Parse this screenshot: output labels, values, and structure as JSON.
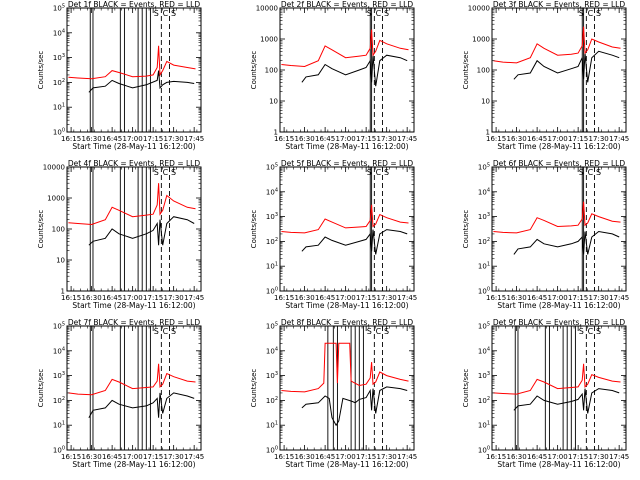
{
  "common": {
    "ylabel": "Counts/sec",
    "xlabel": "Start Time (28-May-11 16:12:00)",
    "x_tick_labels": [
      "16:15",
      "16:30",
      "16:45",
      "17:00",
      "17:15",
      "17:30",
      "17:45"
    ],
    "colors": {
      "events": "#000000",
      "lld": "#ff0000"
    },
    "legend_words": {
      "det": "Det",
      "black": "BLACK",
      "equals": "=",
      "events": "Events,",
      "red": "RED",
      "lld": "LLD"
    }
  },
  "chart_data": [
    {
      "type": "line",
      "detector": "1f",
      "title": "Det 1f BLACK = Events, RED = LLD",
      "xlim": [
        "16:12",
        "17:50"
      ],
      "ylim": [
        1,
        100000
      ],
      "yscale": "log",
      "y_tick_labels": [
        "10^0",
        "10^1",
        "10^2",
        "10^3",
        "10^4",
        "10^5"
      ],
      "solid_markers": [
        "16:29",
        "16:31",
        "16:51",
        "16:54",
        "17:04",
        "17:07",
        "17:10",
        "17:13"
      ],
      "dashed_markers": [
        "17:21",
        "17:27"
      ],
      "markers_top": [
        "S",
        "C",
        "S"
      ],
      "series": [
        {
          "name": "Events",
          "x": [
            "16:28",
            "16:31",
            "16:40",
            "16:45",
            "16:50",
            "17:00",
            "17:10",
            "17:18",
            "17:19",
            "17:20",
            "17:22",
            "17:25",
            "17:30",
            "17:40",
            "17:45"
          ],
          "values": [
            40,
            60,
            70,
            120,
            90,
            60,
            80,
            120,
            300,
            60,
            80,
            100,
            110,
            100,
            90
          ]
        },
        {
          "name": "LLD",
          "x": [
            "16:13",
            "16:20",
            "16:30",
            "16:40",
            "16:45",
            "16:50",
            "17:00",
            "17:10",
            "17:15",
            "17:18",
            "17:19",
            "17:20",
            "17:22",
            "17:25",
            "17:30",
            "17:40",
            "17:46"
          ],
          "values": [
            160,
            150,
            140,
            170,
            300,
            250,
            170,
            180,
            200,
            400,
            3000,
            200,
            300,
            700,
            500,
            400,
            350
          ]
        }
      ]
    },
    {
      "type": "line",
      "detector": "2f",
      "title": "Det 2f BLACK = Events, RED = LLD",
      "xlim": [
        "16:12",
        "17:50"
      ],
      "ylim": [
        1,
        10000
      ],
      "yscale": "log",
      "y_tick_labels": [
        "1",
        "10",
        "100",
        "1000",
        "10000"
      ],
      "solid_markers": [
        "17:18",
        "17:19"
      ],
      "dashed_markers": [
        "17:21",
        "17:27"
      ],
      "markers_top": [
        "S",
        "C",
        "S"
      ],
      "series": [
        {
          "name": "Events",
          "x": [
            "16:28",
            "16:31",
            "16:40",
            "16:45",
            "16:50",
            "17:00",
            "17:10",
            "17:15",
            "17:18",
            "17:19",
            "17:20",
            "17:22",
            "17:25",
            "17:30",
            "17:40",
            "17:45"
          ],
          "values": [
            40,
            60,
            70,
            150,
            110,
            70,
            100,
            120,
            200,
            40,
            300,
            30,
            200,
            300,
            250,
            200
          ]
        },
        {
          "name": "LLD",
          "x": [
            "16:13",
            "16:20",
            "16:30",
            "16:40",
            "16:45",
            "16:50",
            "17:00",
            "17:10",
            "17:15",
            "17:18",
            "17:19",
            "17:20",
            "17:22",
            "17:25",
            "17:30",
            "17:40",
            "17:46"
          ],
          "values": [
            150,
            140,
            130,
            200,
            600,
            450,
            250,
            280,
            300,
            500,
            2000,
            300,
            400,
            900,
            700,
            500,
            450
          ]
        }
      ]
    },
    {
      "type": "line",
      "detector": "3f",
      "title": "Det 3f BLACK = Events, RED = LLD",
      "xlim": [
        "16:12",
        "17:50"
      ],
      "ylim": [
        1,
        10000
      ],
      "yscale": "log",
      "y_tick_labels": [
        "1",
        "10",
        "100",
        "1000",
        "10000"
      ],
      "solid_markers": [
        "17:18",
        "17:19"
      ],
      "dashed_markers": [
        "17:21",
        "17:27"
      ],
      "markers_top": [
        "S",
        "C",
        "S"
      ],
      "series": [
        {
          "name": "Events",
          "x": [
            "16:28",
            "16:31",
            "16:40",
            "16:45",
            "16:50",
            "17:00",
            "17:10",
            "17:15",
            "17:18",
            "17:19",
            "17:20",
            "17:22",
            "17:25",
            "17:30",
            "17:40",
            "17:45"
          ],
          "values": [
            50,
            70,
            80,
            200,
            130,
            80,
            110,
            130,
            250,
            50,
            350,
            40,
            250,
            400,
            300,
            250
          ]
        },
        {
          "name": "LLD",
          "x": [
            "16:13",
            "16:20",
            "16:30",
            "16:40",
            "16:45",
            "16:50",
            "17:00",
            "17:10",
            "17:15",
            "17:18",
            "17:19",
            "17:20",
            "17:22",
            "17:25",
            "17:30",
            "17:40",
            "17:46"
          ],
          "values": [
            200,
            180,
            170,
            250,
            700,
            500,
            300,
            320,
            350,
            600,
            2500,
            350,
            450,
            1000,
            800,
            550,
            500
          ]
        }
      ]
    },
    {
      "type": "line",
      "detector": "4f",
      "title": "Det 4f BLACK = Events, RED = LLD",
      "xlim": [
        "16:12",
        "17:50"
      ],
      "ylim": [
        1,
        10000
      ],
      "yscale": "log",
      "y_tick_labels": [
        "1",
        "10",
        "100",
        "1000",
        "10000"
      ],
      "solid_markers": [
        "16:29",
        "16:31",
        "16:51",
        "16:54",
        "17:04",
        "17:07",
        "17:10",
        "17:13"
      ],
      "dashed_markers": [
        "17:21",
        "17:27"
      ],
      "markers_top": [
        "S",
        "C",
        "S"
      ],
      "series": [
        {
          "name": "Events",
          "x": [
            "16:28",
            "16:31",
            "16:40",
            "16:45",
            "16:50",
            "17:00",
            "17:10",
            "17:15",
            "17:18",
            "17:19",
            "17:20",
            "17:22",
            "17:25",
            "17:30",
            "17:40",
            "17:45"
          ],
          "values": [
            30,
            40,
            50,
            100,
            70,
            50,
            70,
            90,
            150,
            30,
            200,
            30,
            150,
            250,
            200,
            150
          ]
        },
        {
          "name": "LLD",
          "x": [
            "16:13",
            "16:20",
            "16:30",
            "16:40",
            "16:45",
            "16:50",
            "17:00",
            "17:10",
            "17:15",
            "17:18",
            "17:19",
            "17:20",
            "17:22",
            "17:25",
            "17:30",
            "17:40",
            "17:46"
          ],
          "values": [
            160,
            150,
            140,
            200,
            500,
            400,
            250,
            280,
            300,
            600,
            3000,
            300,
            400,
            1200,
            800,
            500,
            450
          ]
        }
      ]
    },
    {
      "type": "line",
      "detector": "5f",
      "title": "Det 5f BLACK = Events, RED = LLD",
      "xlim": [
        "16:12",
        "17:50"
      ],
      "ylim": [
        1,
        100000
      ],
      "yscale": "log",
      "y_tick_labels": [
        "10^0",
        "10^1",
        "10^2",
        "10^3",
        "10^4",
        "10^5"
      ],
      "solid_markers": [
        "17:18",
        "17:19"
      ],
      "dashed_markers": [
        "17:21",
        "17:27"
      ],
      "markers_top": [
        "S",
        "C",
        "S"
      ],
      "series": [
        {
          "name": "Events",
          "x": [
            "16:28",
            "16:31",
            "16:40",
            "16:45",
            "16:50",
            "17:00",
            "17:10",
            "17:15",
            "17:18",
            "17:19",
            "17:20",
            "17:22",
            "17:25",
            "17:30",
            "17:40",
            "17:45"
          ],
          "values": [
            40,
            60,
            70,
            150,
            110,
            70,
            100,
            120,
            200,
            40,
            300,
            30,
            200,
            300,
            250,
            200
          ]
        },
        {
          "name": "LLD",
          "x": [
            "16:13",
            "16:20",
            "16:30",
            "16:40",
            "16:45",
            "16:50",
            "17:00",
            "17:10",
            "17:15",
            "17:18",
            "17:19",
            "17:20",
            "17:22",
            "17:25",
            "17:30",
            "17:40",
            "17:46"
          ],
          "values": [
            250,
            230,
            220,
            300,
            800,
            600,
            350,
            380,
            400,
            700,
            3000,
            400,
            500,
            1200,
            900,
            600,
            550
          ]
        }
      ]
    },
    {
      "type": "line",
      "detector": "6f",
      "title": "Det 6f BLACK = Events, RED = LLD",
      "xlim": [
        "16:12",
        "17:50"
      ],
      "ylim": [
        1,
        100000
      ],
      "yscale": "log",
      "y_tick_labels": [
        "10^0",
        "10^1",
        "10^2",
        "10^3",
        "10^4",
        "10^5"
      ],
      "solid_markers": [
        "17:18",
        "17:19"
      ],
      "dashed_markers": [
        "17:21",
        "17:27"
      ],
      "markers_top": [
        "S",
        "C",
        "S"
      ],
      "series": [
        {
          "name": "Events",
          "x": [
            "16:28",
            "16:31",
            "16:40",
            "16:45",
            "16:50",
            "17:00",
            "17:10",
            "17:15",
            "17:18",
            "17:19",
            "17:20",
            "17:22",
            "17:25",
            "17:30",
            "17:40",
            "17:45"
          ],
          "values": [
            30,
            50,
            60,
            120,
            80,
            60,
            80,
            100,
            150,
            30,
            250,
            30,
            150,
            250,
            200,
            150
          ]
        },
        {
          "name": "LLD",
          "x": [
            "16:13",
            "16:20",
            "16:30",
            "16:40",
            "16:45",
            "16:50",
            "17:00",
            "17:10",
            "17:15",
            "17:18",
            "17:19",
            "17:20",
            "17:22",
            "17:25",
            "17:30",
            "17:40",
            "17:46"
          ],
          "values": [
            250,
            230,
            220,
            300,
            900,
            700,
            400,
            420,
            450,
            800,
            4000,
            450,
            550,
            1300,
            1000,
            650,
            600
          ]
        }
      ]
    },
    {
      "type": "line",
      "detector": "7f",
      "title": "Det 7f BLACK = Events, RED = LLD",
      "xlim": [
        "16:12",
        "17:50"
      ],
      "ylim": [
        1,
        100000
      ],
      "yscale": "log",
      "y_tick_labels": [
        "10^0",
        "10^1",
        "10^2",
        "10^3",
        "10^4",
        "10^5"
      ],
      "solid_markers": [
        "16:29",
        "16:31",
        "16:51",
        "16:54",
        "17:04",
        "17:07",
        "17:10",
        "17:13"
      ],
      "dashed_markers": [
        "17:21",
        "17:27"
      ],
      "markers_top": [
        "S",
        "C",
        "S"
      ],
      "series": [
        {
          "name": "Events",
          "x": [
            "16:28",
            "16:31",
            "16:40",
            "16:45",
            "16:50",
            "17:00",
            "17:10",
            "17:15",
            "17:18",
            "17:19",
            "17:20",
            "17:22",
            "17:25",
            "17:30",
            "17:40",
            "17:45"
          ],
          "values": [
            20,
            40,
            50,
            100,
            70,
            50,
            60,
            80,
            120,
            20,
            200,
            30,
            120,
            200,
            150,
            120
          ]
        },
        {
          "name": "LLD",
          "x": [
            "16:13",
            "16:20",
            "16:30",
            "16:40",
            "16:45",
            "16:50",
            "17:00",
            "17:10",
            "17:15",
            "17:18",
            "17:19",
            "17:20",
            "17:22",
            "17:25",
            "17:30",
            "17:40",
            "17:46"
          ],
          "values": [
            200,
            180,
            170,
            250,
            700,
            550,
            300,
            330,
            350,
            600,
            3000,
            350,
            450,
            1200,
            900,
            600,
            550
          ]
        }
      ]
    },
    {
      "type": "line",
      "detector": "8f",
      "title": "Det 8f BLACK = Events, RED = LLD",
      "xlim": [
        "16:12",
        "17:50"
      ],
      "ylim": [
        1,
        100000
      ],
      "yscale": "log",
      "y_tick_labels": [
        "10^0",
        "10^1",
        "10^2",
        "10^3",
        "10^4",
        "10^5"
      ],
      "solid_markers": [
        "16:47",
        "16:51",
        "16:54",
        "17:04",
        "17:07",
        "17:10",
        "17:13"
      ],
      "dashed_markers": [
        "17:21",
        "17:27"
      ],
      "markers_top": [
        "S",
        "C",
        "S"
      ],
      "series": [
        {
          "name": "Events",
          "x": [
            "16:28",
            "16:31",
            "16:40",
            "16:45",
            "16:48",
            "16:50",
            "16:53",
            "16:55",
            "16:58",
            "17:05",
            "17:07",
            "17:10",
            "17:15",
            "17:18",
            "17:19",
            "17:20",
            "17:22",
            "17:25",
            "17:30",
            "17:40",
            "17:45"
          ],
          "values": [
            50,
            70,
            80,
            150,
            120,
            20,
            10,
            15,
            120,
            90,
            80,
            110,
            130,
            250,
            40,
            300,
            30,
            250,
            350,
            300,
            250
          ]
        },
        {
          "name": "LLD",
          "x": [
            "16:13",
            "16:20",
            "16:30",
            "16:40",
            "16:44",
            "16:45",
            "16:53",
            "16:54",
            "16:55",
            "17:03",
            "17:04",
            "17:10",
            "17:15",
            "17:18",
            "17:19",
            "17:20",
            "17:22",
            "17:25",
            "17:30",
            "17:40",
            "17:46"
          ],
          "values": [
            250,
            230,
            220,
            300,
            500,
            20000,
            20000,
            500,
            20000,
            20000,
            600,
            400,
            450,
            800,
            3500,
            450,
            550,
            1400,
            1000,
            700,
            600
          ]
        }
      ]
    },
    {
      "type": "line",
      "detector": "9f",
      "title": "Det 9f BLACK = Events, RED = LLD",
      "xlim": [
        "16:12",
        "17:50"
      ],
      "ylim": [
        1,
        100000
      ],
      "yscale": "log",
      "y_tick_labels": [
        "10^0",
        "10^1",
        "10^2",
        "10^3",
        "10^4",
        "10^5"
      ],
      "solid_markers": [
        "16:29",
        "16:31",
        "16:51",
        "16:54",
        "17:04",
        "17:07",
        "17:10",
        "17:13"
      ],
      "dashed_markers": [
        "17:21",
        "17:27"
      ],
      "markers_top": [
        "S",
        "C",
        "S"
      ],
      "series": [
        {
          "name": "Events",
          "x": [
            "16:28",
            "16:31",
            "16:40",
            "16:45",
            "16:50",
            "17:00",
            "17:10",
            "17:15",
            "17:18",
            "17:19",
            "17:20",
            "17:22",
            "17:25",
            "17:30",
            "17:40",
            "17:45"
          ],
          "values": [
            40,
            60,
            70,
            150,
            100,
            70,
            90,
            110,
            180,
            40,
            300,
            30,
            200,
            300,
            250,
            200
          ]
        },
        {
          "name": "LLD",
          "x": [
            "16:13",
            "16:20",
            "16:30",
            "16:40",
            "16:45",
            "16:50",
            "17:00",
            "17:10",
            "17:15",
            "17:18",
            "17:19",
            "17:20",
            "17:22",
            "17:25",
            "17:30",
            "17:40",
            "17:46"
          ],
          "values": [
            200,
            190,
            180,
            250,
            700,
            550,
            300,
            330,
            350,
            650,
            3000,
            350,
            450,
            1100,
            850,
            600,
            550
          ]
        }
      ]
    }
  ]
}
